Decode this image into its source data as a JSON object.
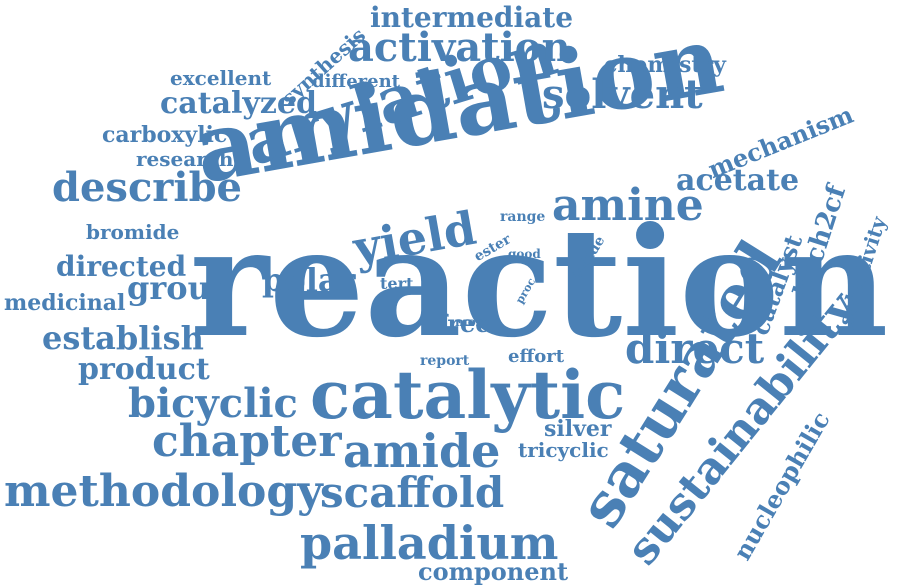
{
  "word_color": "#4a80b5",
  "background": "#ffffff",
  "words": {
    "reaction": "reaction",
    "amidation": "amidation",
    "catalytic": "catalytic",
    "arylation": "arylation",
    "saturated": "saturated",
    "sustainability": "sustainability",
    "activation": "activation",
    "methodology": "methodology",
    "palladium": "palladium",
    "scaffold": "scaffold",
    "amide": "amide",
    "chapter": "chapter",
    "bicyclic": "bicyclic",
    "amine": "amine",
    "describe": "describe",
    "yield": "yield",
    "direct": "direct",
    "solvent": "solvent",
    "catalyzed": "catalyzed",
    "acetate": "acetate",
    "group": "group",
    "polar": "polar",
    "establish": "establish",
    "product": "product",
    "directed": "directed",
    "mechanism": "mechanism",
    "intermediate": "intermediate",
    "component": "component",
    "carboxylic": "carboxylic",
    "research": "research",
    "excellent": "excellent",
    "different": "different",
    "synthesis": "synthesis",
    "chemistry": "chemistry",
    "bromide": "bromide",
    "medicinal": "medicinal",
    "free": "free",
    "silver": "silver",
    "tricyclic": "tricyclic",
    "effort": "effort",
    "report": "report",
    "tert": "tert",
    "more": "more",
    "range": "range",
    "ester": "ester",
    "good": "good",
    "proc": "proc",
    "iodide": "iodide",
    "catalyst": "catalyst",
    "boch2cf": "boch2cf",
    "selectivity": "selectivity",
    "nucleophilic": "nucleophilic"
  }
}
